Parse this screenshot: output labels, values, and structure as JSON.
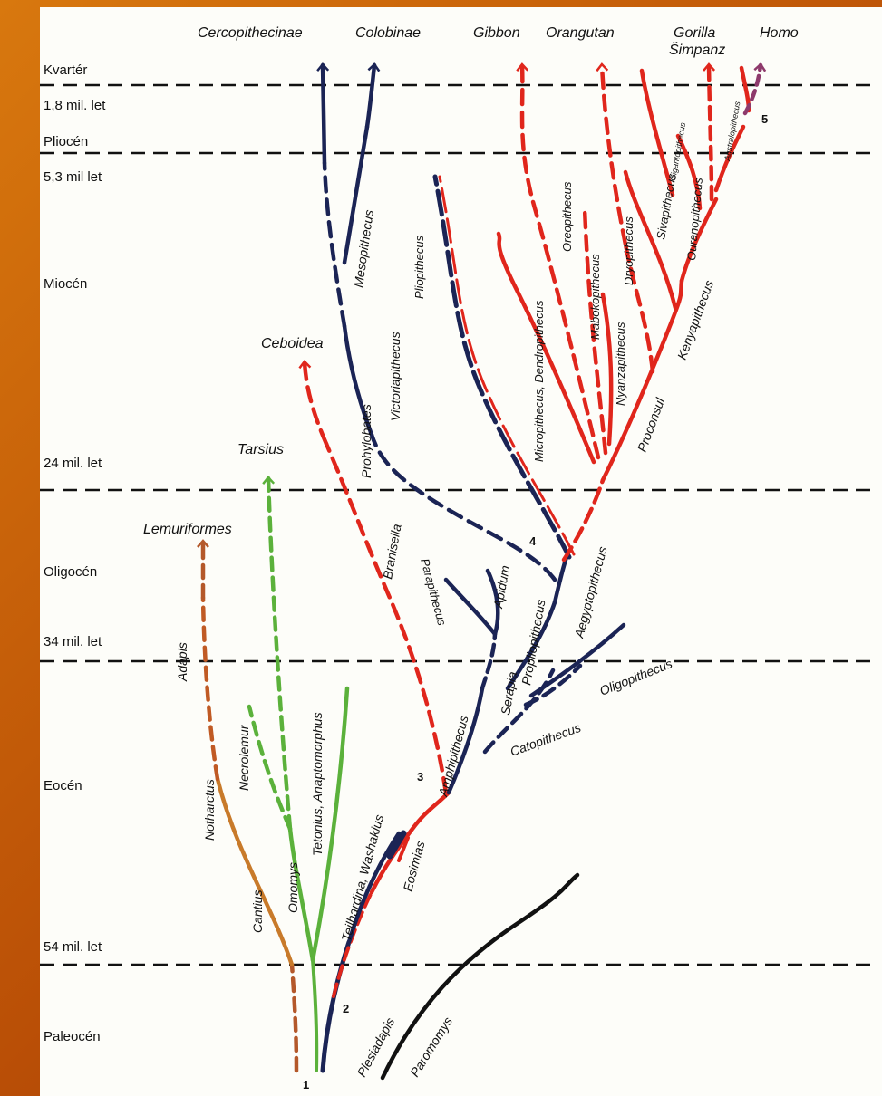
{
  "eras": [
    "Kvartér",
    "1,8 mil. let",
    "Pliocén",
    "5,3 mil let",
    "Miocén",
    "24 mil. let",
    "Oligocén",
    "34 mil. let",
    "Eocén",
    "54 mil. let",
    "Paleocén"
  ],
  "top_groups": [
    "Cercopithecinae",
    "Colobinae",
    "Gibbon",
    "Orangutan",
    "Gorilla",
    "Šimpanz",
    "Homo"
  ],
  "mid_groups": [
    "Ceboidea",
    "Tarsius",
    "Lemuriformes"
  ],
  "taxa": {
    "adapis": "Adapis",
    "notharctus": "Notharctus",
    "cantius": "Cantius",
    "necrolemur": "Necrolemur",
    "omomys": "Omomys",
    "tetonius": "Tetonius, Anaptomorphus",
    "teilhardina": "Teilhardina, Washakius",
    "eosimias": "Eosimias",
    "branisella": "Branisella",
    "prohylobates": "Prohylobates",
    "victoriapithecus": "Victoriapithecus",
    "mesopithecus": "Mesopithecus",
    "pliopithecus": "Pliopithecus",
    "dendropithecus": "Micropithecus, Dendropithecus",
    "oreopithecus": "Oreopithecus",
    "mabokopithecus": "Mabokopithecus",
    "nyanzapithecus": "Nyanzapithecus",
    "dryopithecus": "Dryopithecus",
    "sivapithecus": "Sivapithecus",
    "gigantopithecus": "Gigantopithecus",
    "ouranopithecus": "Ouranopithecus",
    "australopithecus": "Australopithecus",
    "kenyapithecus": "Kenyapithecus",
    "proconsul": "Proconsul",
    "aegyptopithecus": "Aegyptopithecus",
    "propliopithecus": "Propliopithecus",
    "apidum": "Apidum",
    "parapithecus": "Parapithecus",
    "serapia": "Serapia",
    "amphipithecus": "Amphipithecus",
    "catopithecus": "Catopithecus",
    "oligopithecus": "Oligopithecus",
    "plesiadapis": "Plesiadapis",
    "paromomys": "Paromomys"
  },
  "markers": [
    "1",
    "2",
    "3",
    "4",
    "5"
  ],
  "colors": {
    "red": "#e0261c",
    "navy": "#1b2455",
    "green": "#5bb13b",
    "brown": "#b4582a",
    "black": "#111111",
    "purple": "#8e3a6c",
    "frame": "#c9620a"
  }
}
